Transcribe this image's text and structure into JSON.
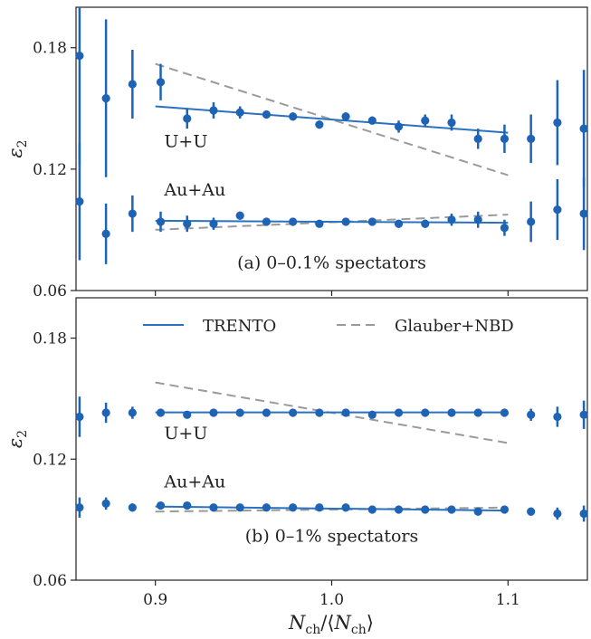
{
  "figure": {
    "xlabel": "N_ch/⟨N_ch⟩",
    "legend": {
      "trento": "TRENTO",
      "glauber": "Glauber+NBD"
    }
  },
  "chart_data": [
    {
      "type": "scatter",
      "panel": "(a) 0–0.1% spectators",
      "ylabel": "ε2",
      "xlim": [
        0.855,
        1.145
      ],
      "ylim": [
        0.06,
        0.2
      ],
      "yticks": [
        0.06,
        0.12,
        0.18
      ],
      "xticks": [
        0.9,
        1.0,
        1.1
      ],
      "system_labels": [
        {
          "text": "U+U",
          "x": 0.905,
          "y": 0.131
        },
        {
          "text": "Au+Au",
          "x": 0.905,
          "y": 0.107
        }
      ],
      "panel_label": {
        "text": "(a) 0–0.1% spectators",
        "x": 1.0,
        "y": 0.071
      },
      "series": [
        {
          "name": "U+U",
          "points": [
            [
              0.857,
              0.176,
              0.054
            ],
            [
              0.872,
              0.155,
              0.039
            ],
            [
              0.887,
              0.162,
              0.017
            ],
            [
              0.903,
              0.163,
              0.009
            ],
            [
              0.918,
              0.145,
              0.005
            ],
            [
              0.933,
              0.149,
              0.004
            ],
            [
              0.948,
              0.148,
              0.003
            ],
            [
              0.963,
              0.147,
              0.002
            ],
            [
              0.978,
              0.146,
              0.002
            ],
            [
              0.993,
              0.142,
              0.002
            ],
            [
              1.008,
              0.146,
              0.002
            ],
            [
              1.023,
              0.144,
              0.002
            ],
            [
              1.038,
              0.141,
              0.003
            ],
            [
              1.053,
              0.144,
              0.003
            ],
            [
              1.068,
              0.143,
              0.004
            ],
            [
              1.083,
              0.135,
              0.005
            ],
            [
              1.098,
              0.135,
              0.007
            ],
            [
              1.113,
              0.135,
              0.012
            ],
            [
              1.128,
              0.143,
              0.021
            ],
            [
              1.143,
              0.14,
              0.029
            ]
          ],
          "trento_fit": [
            [
              0.9,
              0.151
            ],
            [
              1.1,
              0.138
            ]
          ],
          "glauber_fit": [
            [
              0.9,
              0.172
            ],
            [
              1.1,
              0.117
            ]
          ]
        },
        {
          "name": "Au+Au",
          "points": [
            [
              0.857,
              0.104,
              0.029
            ],
            [
              0.872,
              0.088,
              0.015
            ],
            [
              0.887,
              0.098,
              0.009
            ],
            [
              0.903,
              0.094,
              0.005
            ],
            [
              0.918,
              0.093,
              0.004
            ],
            [
              0.933,
              0.093,
              0.003
            ],
            [
              0.948,
              0.097,
              0.002
            ],
            [
              0.963,
              0.094,
              0.002
            ],
            [
              0.978,
              0.094,
              0.002
            ],
            [
              0.993,
              0.093,
              0.001
            ],
            [
              1.008,
              0.094,
              0.001
            ],
            [
              1.023,
              0.094,
              0.002
            ],
            [
              1.038,
              0.093,
              0.002
            ],
            [
              1.053,
              0.093,
              0.002
            ],
            [
              1.068,
              0.095,
              0.003
            ],
            [
              1.083,
              0.095,
              0.004
            ],
            [
              1.098,
              0.091,
              0.004
            ],
            [
              1.113,
              0.094,
              0.01
            ],
            [
              1.128,
              0.1,
              0.015
            ],
            [
              1.143,
              0.098,
              0.018
            ]
          ],
          "trento_fit": [
            [
              0.9,
              0.0945
            ],
            [
              1.1,
              0.0935
            ]
          ],
          "glauber_fit": [
            [
              0.9,
              0.09
            ],
            [
              1.1,
              0.0975
            ]
          ]
        }
      ]
    },
    {
      "type": "scatter",
      "panel": "(b) 0–1% spectators",
      "ylabel": "ε2",
      "xlim": [
        0.855,
        1.145
      ],
      "ylim": [
        0.06,
        0.2
      ],
      "yticks": [
        0.06,
        0.12,
        0.18
      ],
      "xticks": [
        0.9,
        1.0,
        1.1
      ],
      "system_labels": [
        {
          "text": "U+U",
          "x": 0.905,
          "y": 0.13
        },
        {
          "text": "Au+Au",
          "x": 0.905,
          "y": 0.106
        }
      ],
      "panel_label": {
        "text": "(b) 0–1% spectators",
        "x": 1.0,
        "y": 0.079
      },
      "series": [
        {
          "name": "U+U",
          "points": [
            [
              0.857,
              0.141,
              0.01
            ],
            [
              0.872,
              0.143,
              0.005
            ],
            [
              0.887,
              0.143,
              0.003
            ],
            [
              0.903,
              0.143,
              0.002
            ],
            [
              0.918,
              0.142,
              0.001
            ],
            [
              0.933,
              0.143,
              0.001
            ],
            [
              0.948,
              0.143,
              0.001
            ],
            [
              0.963,
              0.143,
              0.001
            ],
            [
              0.978,
              0.143,
              0.001
            ],
            [
              0.993,
              0.143,
              0.001
            ],
            [
              1.008,
              0.143,
              0.001
            ],
            [
              1.023,
              0.142,
              0.001
            ],
            [
              1.038,
              0.143,
              0.001
            ],
            [
              1.053,
              0.143,
              0.001
            ],
            [
              1.068,
              0.143,
              0.001
            ],
            [
              1.083,
              0.143,
              0.001
            ],
            [
              1.098,
              0.143,
              0.002
            ],
            [
              1.113,
              0.142,
              0.003
            ],
            [
              1.128,
              0.141,
              0.005
            ],
            [
              1.143,
              0.142,
              0.007
            ]
          ],
          "trento_fit": [
            [
              0.9,
              0.1432
            ],
            [
              1.1,
              0.1432
            ]
          ],
          "glauber_fit": [
            [
              0.9,
              0.158
            ],
            [
              1.1,
              0.128
            ]
          ]
        },
        {
          "name": "Au+Au",
          "points": [
            [
              0.857,
              0.096,
              0.005
            ],
            [
              0.872,
              0.098,
              0.003
            ],
            [
              0.887,
              0.096,
              0.002
            ],
            [
              0.903,
              0.097,
              0.001
            ],
            [
              0.918,
              0.097,
              0.001
            ],
            [
              0.933,
              0.096,
              0.001
            ],
            [
              0.948,
              0.096,
              0.001
            ],
            [
              0.963,
              0.096,
              0.001
            ],
            [
              0.978,
              0.096,
              0.001
            ],
            [
              0.993,
              0.096,
              0.001
            ],
            [
              1.008,
              0.096,
              0.001
            ],
            [
              1.023,
              0.095,
              0.001
            ],
            [
              1.038,
              0.095,
              0.001
            ],
            [
              1.053,
              0.095,
              0.001
            ],
            [
              1.068,
              0.095,
              0.001
            ],
            [
              1.083,
              0.094,
              0.001
            ],
            [
              1.098,
              0.095,
              0.001
            ],
            [
              1.113,
              0.094,
              0.002
            ],
            [
              1.128,
              0.093,
              0.003
            ],
            [
              1.143,
              0.093,
              0.004
            ]
          ],
          "trento_fit": [
            [
              0.9,
              0.0965
            ],
            [
              1.1,
              0.0945
            ]
          ],
          "glauber_fit": [
            [
              0.9,
              0.094
            ],
            [
              1.1,
              0.096
            ]
          ]
        }
      ]
    }
  ],
  "colors": {
    "points": "#1f63b5",
    "trento": "#2a72c0",
    "glauber": "#9a9a9a",
    "axes": "#222222"
  }
}
